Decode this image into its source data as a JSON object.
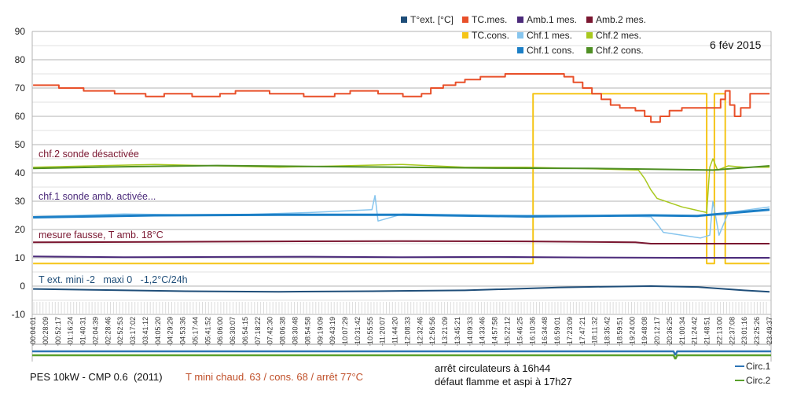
{
  "chart_data": {
    "type": "line",
    "title": "",
    "date_label": "6 fév 2015",
    "xlabel": "",
    "ylabel": "",
    "ylim": [
      -10,
      90
    ],
    "yticks": [
      90,
      80,
      70,
      60,
      50,
      40,
      30,
      20,
      10,
      0,
      -10
    ],
    "grid": true,
    "legend_position": "top-right",
    "x_ticks": [
      "00:04:01",
      "00:28:09",
      "00:52:17",
      "01:16:24",
      "01:40:31",
      "02:04:39",
      "02:28:46",
      "02:52:53",
      "03:17:02",
      "03:41:12",
      "04:05:20",
      "04:29:29",
      "04:53:36",
      "05:17:44",
      "05:41:52",
      "06:06:00",
      "06:30:07",
      "06:54:15",
      "07:18:22",
      "07:42:30",
      "08:06:38",
      "08:30:48",
      "08:54:58",
      "09:19:09",
      "09:43:19",
      "10:07:29",
      "10:31:42",
      "10:55:55",
      "11:20:07",
      "11:44:20",
      "12:08:33",
      "12:32:46",
      "12:56:56",
      "13:21:09",
      "13:45:21",
      "14:09:33",
      "14:33:46",
      "14:57:58",
      "15:22:12",
      "15:46:25",
      "16:10:36",
      "16:34:48",
      "16:59:01",
      "17:23:09",
      "17:47:21",
      "18:11:32",
      "18:35:42",
      "18:59:51",
      "19:24:00",
      "19:48:08",
      "20:12:17",
      "20:36:25",
      "21:00:34",
      "21:24:42",
      "21:48:51",
      "22:13:00",
      "22:37:08",
      "23:01:16",
      "23:25:26",
      "23:49:37"
    ],
    "x_range_hours": [
      0.067,
      23.827
    ],
    "series": [
      {
        "name": "T°ext. [°C]",
        "color": "#1f4e79",
        "width": 2,
        "points": [
          [
            0.07,
            -1
          ],
          [
            2,
            -1.3
          ],
          [
            5,
            -1.8
          ],
          [
            8,
            -2
          ],
          [
            11,
            -1.8
          ],
          [
            14,
            -1.5
          ],
          [
            17,
            -0.5
          ],
          [
            18.5,
            -0.2
          ],
          [
            20,
            0
          ],
          [
            21.5,
            -0.3
          ],
          [
            23,
            -1.5
          ],
          [
            23.83,
            -2
          ]
        ]
      },
      {
        "name": "TC.mes.",
        "color": "#e8502a",
        "width": 2,
        "step": true,
        "points": [
          [
            0.07,
            71
          ],
          [
            0.8,
            71
          ],
          [
            0.9,
            70
          ],
          [
            1.5,
            70
          ],
          [
            1.7,
            69
          ],
          [
            2.5,
            69
          ],
          [
            2.7,
            68
          ],
          [
            3.5,
            68
          ],
          [
            3.7,
            67
          ],
          [
            4.1,
            67
          ],
          [
            4.3,
            68
          ],
          [
            4.8,
            68
          ],
          [
            5.2,
            67
          ],
          [
            5.8,
            67
          ],
          [
            6.1,
            68
          ],
          [
            6.6,
            69
          ],
          [
            7.2,
            69
          ],
          [
            7.7,
            68
          ],
          [
            8.6,
            68
          ],
          [
            8.8,
            67
          ],
          [
            9.6,
            67
          ],
          [
            9.8,
            68
          ],
          [
            10.1,
            68
          ],
          [
            10.3,
            69
          ],
          [
            10.9,
            69
          ],
          [
            11.2,
            68
          ],
          [
            11.8,
            68
          ],
          [
            12.0,
            67
          ],
          [
            12.4,
            67
          ],
          [
            12.6,
            68
          ],
          [
            12.9,
            70
          ],
          [
            13.3,
            71
          ],
          [
            13.7,
            72
          ],
          [
            14.0,
            73
          ],
          [
            14.5,
            74
          ],
          [
            15.3,
            75
          ],
          [
            16.8,
            75
          ],
          [
            17.2,
            74
          ],
          [
            17.5,
            72
          ],
          [
            17.8,
            70
          ],
          [
            18.1,
            68
          ],
          [
            18.4,
            66
          ],
          [
            18.7,
            64
          ],
          [
            19.0,
            63
          ],
          [
            19.5,
            62
          ],
          [
            19.8,
            60
          ],
          [
            20.0,
            58
          ],
          [
            20.3,
            60
          ],
          [
            20.6,
            62
          ],
          [
            21.0,
            63
          ],
          [
            21.6,
            63
          ],
          [
            22.0,
            63
          ],
          [
            22.25,
            66
          ],
          [
            22.4,
            69
          ],
          [
            22.55,
            64
          ],
          [
            22.7,
            60
          ],
          [
            22.9,
            63
          ],
          [
            23.2,
            68
          ],
          [
            23.83,
            68
          ]
        ]
      },
      {
        "name": "Amb.1 mes.",
        "color": "#4b2a7a",
        "width": 2,
        "points": [
          [
            0.07,
            10.5
          ],
          [
            3,
            10.2
          ],
          [
            6,
            10.3
          ],
          [
            9,
            10.4
          ],
          [
            12,
            10.2
          ],
          [
            15,
            10.3
          ],
          [
            18,
            10.1
          ],
          [
            21,
            10
          ],
          [
            23.83,
            10
          ]
        ]
      },
      {
        "name": "Amb.2 mes.",
        "color": "#7a1630",
        "width": 2,
        "points": [
          [
            0.07,
            15.5
          ],
          [
            4,
            15.6
          ],
          [
            8,
            15.8
          ],
          [
            12,
            15.9
          ],
          [
            16,
            15.8
          ],
          [
            19.5,
            15.5
          ],
          [
            20,
            15
          ],
          [
            23.83,
            15
          ]
        ]
      },
      {
        "name": "TC.cons.",
        "color": "#f5c518",
        "width": 2,
        "points": [
          [
            0.07,
            8
          ],
          [
            16.2,
            8
          ],
          [
            16.2,
            68
          ],
          [
            21.8,
            68
          ],
          [
            21.8,
            8
          ],
          [
            22.05,
            8
          ],
          [
            22.05,
            68
          ],
          [
            22.4,
            68
          ],
          [
            22.4,
            8
          ],
          [
            23.83,
            8
          ]
        ]
      },
      {
        "name": "Chf.1 mes.",
        "color": "#86c5ee",
        "width": 1.5,
        "points": [
          [
            0.07,
            24.5
          ],
          [
            3,
            25.5
          ],
          [
            6,
            25
          ],
          [
            9,
            26
          ],
          [
            11,
            27
          ],
          [
            11.1,
            32
          ],
          [
            11.2,
            23
          ],
          [
            12,
            25.5
          ],
          [
            15,
            25
          ],
          [
            18,
            25
          ],
          [
            20,
            24.5
          ],
          [
            20.2,
            22
          ],
          [
            20.4,
            19
          ],
          [
            21.6,
            17
          ],
          [
            21.9,
            18
          ],
          [
            22.0,
            30
          ],
          [
            22.2,
            18
          ],
          [
            22.5,
            26
          ],
          [
            23.83,
            28
          ]
        ]
      },
      {
        "name": "Chf.2 mes.",
        "color": "#a8c81e",
        "width": 1.5,
        "points": [
          [
            0.07,
            42
          ],
          [
            2,
            42.5
          ],
          [
            4,
            43
          ],
          [
            6,
            42.5
          ],
          [
            8,
            42
          ],
          [
            10,
            42.5
          ],
          [
            12,
            43
          ],
          [
            14,
            42
          ],
          [
            16,
            42
          ],
          [
            18,
            41.5
          ],
          [
            19.6,
            41
          ],
          [
            19.8,
            38
          ],
          [
            20,
            34
          ],
          [
            20.2,
            31
          ],
          [
            21,
            28
          ],
          [
            21.8,
            26
          ],
          [
            21.9,
            42
          ],
          [
            22.0,
            45
          ],
          [
            22.15,
            41
          ],
          [
            22.5,
            42.5
          ],
          [
            23,
            42
          ],
          [
            23.83,
            42
          ]
        ]
      },
      {
        "name": "Chf.1 cons.",
        "color": "#1c7fc6",
        "width": 3,
        "points": [
          [
            0.07,
            24.3
          ],
          [
            4,
            25
          ],
          [
            8,
            25.2
          ],
          [
            12,
            25.2
          ],
          [
            16,
            24.6
          ],
          [
            20,
            25
          ],
          [
            21.5,
            24.8
          ],
          [
            23.83,
            27
          ]
        ]
      },
      {
        "name": "Chf.2 cons.",
        "color": "#4f8f24",
        "width": 2,
        "points": [
          [
            0.07,
            41.6
          ],
          [
            3,
            42.2
          ],
          [
            6,
            42.6
          ],
          [
            9,
            42.3
          ],
          [
            12,
            42
          ],
          [
            15,
            41.7
          ],
          [
            18,
            41.6
          ],
          [
            20,
            41.3
          ],
          [
            22,
            41
          ],
          [
            23.83,
            42.5
          ]
        ]
      }
    ],
    "lower_series": [
      {
        "name": "Circ.1",
        "color": "#2e75b6",
        "dip_hours": [
          20.73,
          20.85
        ]
      },
      {
        "name": "Circ.2",
        "color": "#5aa02c",
        "dip_hours": [
          20.73,
          20.85
        ]
      }
    ],
    "annotations": [
      {
        "text": "chf.2 sonde désactivée",
        "color": "#7a1630"
      },
      {
        "text": "chf.1 sonde amb. activée...",
        "color": "#4b2a7a"
      },
      {
        "text": "mesure fausse, T amb. 18°C",
        "color": "#7a1630"
      },
      {
        "text": "T ext. mini -2   maxi 0   -1,2°C/24h",
        "color": "#1f4e79"
      }
    ]
  },
  "footer": {
    "model": "PES 10kW - CMP 0.6  (2011)",
    "settings": "T mini chaud. 63 / cons. 68 / arrêt 77°C",
    "settings_color": "#c0502a",
    "note_line1": "arrêt circulateurs à 16h44",
    "note_line2": "défaut flamme et aspi à 17h27"
  },
  "legend": {
    "items": [
      {
        "label": "T°ext. [°C]",
        "color": "#1f4e79"
      },
      {
        "label": "TC.mes.",
        "color": "#e8502a"
      },
      {
        "label": "Amb.1 mes.",
        "color": "#4b2a7a"
      },
      {
        "label": "Amb.2 mes.",
        "color": "#7a1630"
      },
      {
        "label": "TC.cons.",
        "color": "#f5c518"
      },
      {
        "label": "Chf.1 mes.",
        "color": "#86c5ee"
      },
      {
        "label": "Chf.2 mes.",
        "color": "#a8c81e"
      },
      {
        "label": "Chf.1 cons.",
        "color": "#1c7fc6"
      },
      {
        "label": "Chf.2 cons.",
        "color": "#4f8f24"
      }
    ],
    "circ": [
      {
        "label": "Circ.1",
        "color": "#2e75b6"
      },
      {
        "label": "Circ.2",
        "color": "#5aa02c"
      }
    ]
  }
}
